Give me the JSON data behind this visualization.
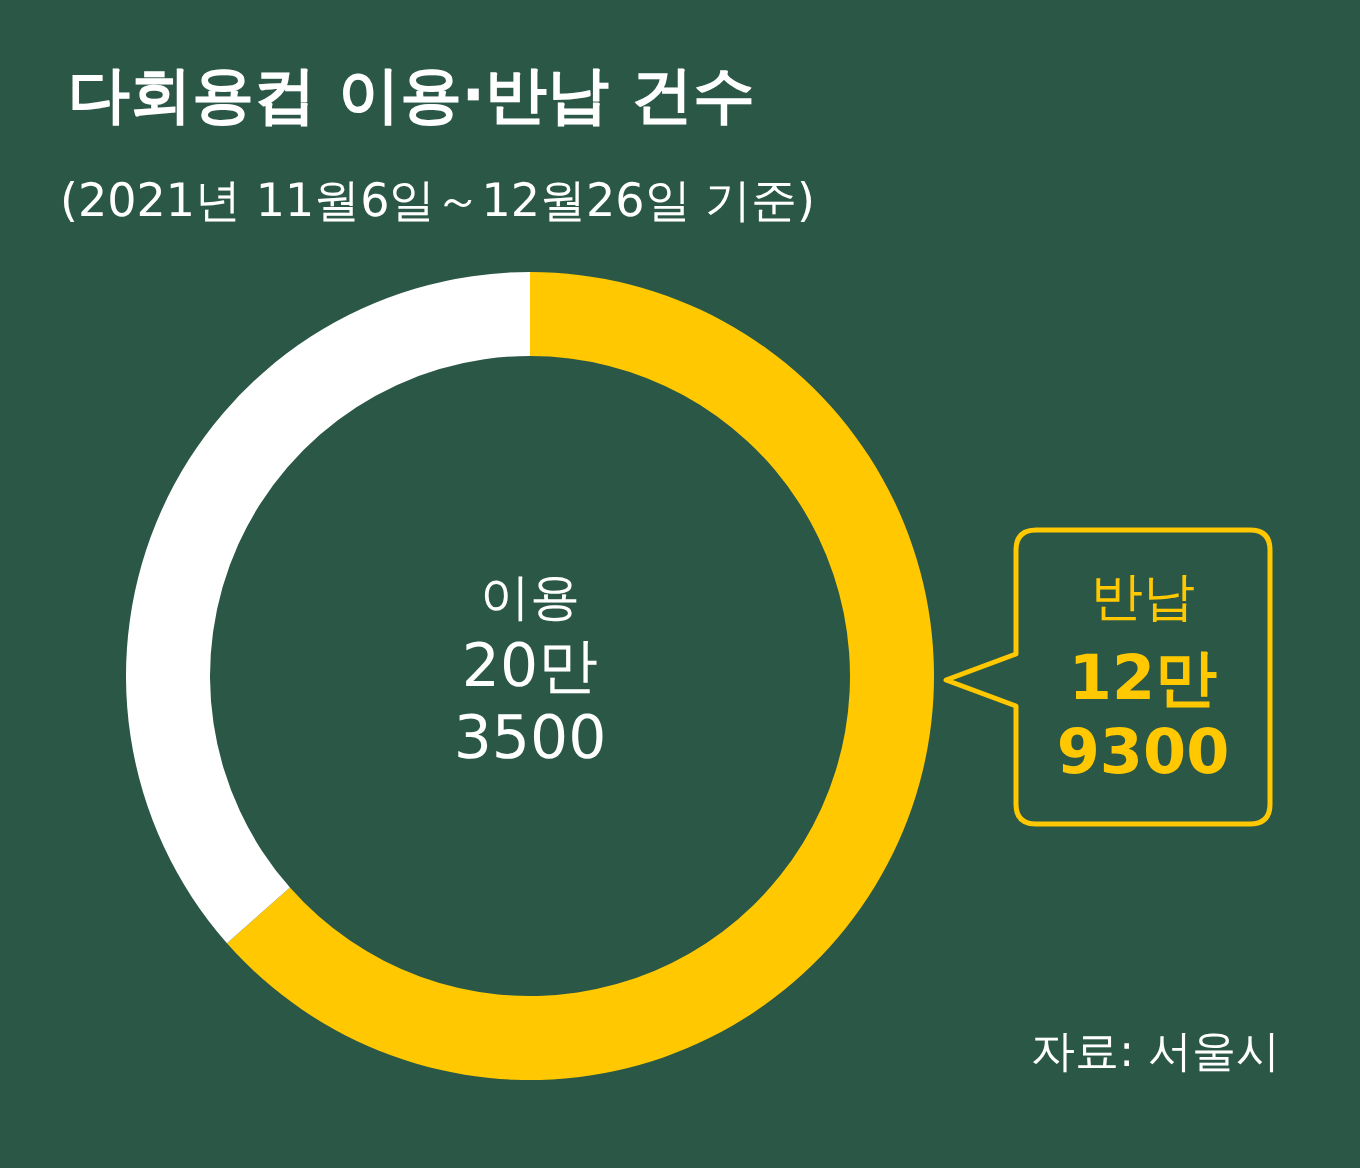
{
  "chart_data": {
    "type": "donut",
    "title": "다회용컵 이용·반납 건수",
    "subtitle": "(2021년 11월6일～12월26일 기준)",
    "categories": [
      "반납",
      null
    ],
    "values": [
      63.5,
      36.5
    ],
    "colors": [
      "#ffc800",
      "#ffffff"
    ],
    "annotations": [
      "이용\n20만\n3500",
      "12만\n9300",
      "자료: 서울시"
    ]
  }
}
